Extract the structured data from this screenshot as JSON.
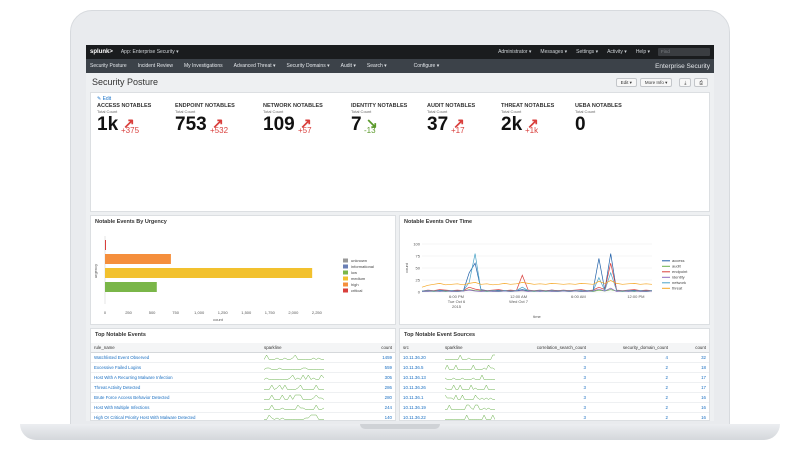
{
  "topbar": {
    "logo": "splunk>",
    "app": "App: Enterprise Security ▾",
    "menus": [
      "Administrator ▾",
      "Messages ▾",
      "Settings ▾",
      "Activity ▾",
      "Help ▾"
    ],
    "find_placeholder": "Find"
  },
  "navbar": {
    "items": [
      "Security Posture",
      "Incident Review",
      "My Investigations",
      "Advanced Threat ▾",
      "Security Domains ▾",
      "Audit ▾",
      "Search ▾",
      "Configure ▾"
    ],
    "brand": "Enterprise Security"
  },
  "page": {
    "title": "Security Posture",
    "edit_btn": "Edit ▾",
    "more_info_btn": "More Info ▾",
    "download_icon": "download-icon",
    "print_icon": "print-icon"
  },
  "kpi_panel": {
    "edit_link": "✎ Edit",
    "items": [
      {
        "label": "ACCESS NOTABLES",
        "sub": "Total Count",
        "value": "1k",
        "delta": "+375",
        "trend": "up"
      },
      {
        "label": "ENDPOINT NOTABLES",
        "sub": "Total Count",
        "value": "753",
        "delta": "+532",
        "trend": "up"
      },
      {
        "label": "NETWORK NOTABLES",
        "sub": "Total Count",
        "value": "109",
        "delta": "+57",
        "trend": "up"
      },
      {
        "label": "IDENTITY NOTABLES",
        "sub": "Total Count",
        "value": "7",
        "delta": "-13",
        "trend": "down"
      },
      {
        "label": "AUDIT NOTABLES",
        "sub": "Total Count",
        "value": "37",
        "delta": "+17",
        "trend": "up"
      },
      {
        "label": "THREAT NOTABLES",
        "sub": "Total Count",
        "value": "2k",
        "delta": "+1k",
        "trend": "up"
      },
      {
        "label": "UEBA NOTABLES",
        "sub": "Total Count",
        "value": "0",
        "delta": "",
        "trend": "none"
      }
    ],
    "up_color": "#d93f3c",
    "down_color": "#5b9a2b"
  },
  "urgency_chart": {
    "title": "Notable Events By Urgency",
    "ylabel": "urgency",
    "xlabel": "count",
    "ticks": [
      "0",
      "250",
      "500",
      "750",
      "1,000",
      "1,250",
      "1,500",
      "1,750",
      "2,000",
      "2,250"
    ],
    "legend": [
      {
        "name": "unknown",
        "color": "#999999"
      },
      {
        "name": "informational",
        "color": "#6a7fb5"
      },
      {
        "name": "low",
        "color": "#7ab648"
      },
      {
        "name": "medium",
        "color": "#f2c12e"
      },
      {
        "name": "high",
        "color": "#f58f3c"
      },
      {
        "name": "critical",
        "color": "#d93f3c"
      }
    ]
  },
  "chart_data": [
    {
      "type": "bar",
      "categories": [
        "critical",
        "high",
        "medium",
        "low"
      ],
      "values": [
        10,
        700,
        2200,
        550
      ],
      "xlim": [
        0,
        2400
      ]
    },
    {
      "type": "line",
      "x": [
        0,
        1,
        2,
        3,
        4,
        5,
        6,
        7,
        8,
        9,
        10,
        11,
        12,
        13,
        14,
        15,
        16,
        17,
        18,
        19,
        20,
        21,
        22,
        23,
        24,
        25,
        26,
        27,
        28,
        29,
        30,
        31,
        32,
        33,
        34,
        35,
        36,
        37,
        38,
        39
      ],
      "series": [
        {
          "name": "access",
          "color": "#1f5fa8",
          "values": [
            2,
            3,
            2,
            4,
            3,
            2,
            3,
            2,
            40,
            60,
            5,
            3,
            2,
            4,
            3,
            2,
            3,
            5,
            3,
            2,
            3,
            2,
            4,
            3,
            2,
            3,
            2,
            3,
            2,
            3,
            70,
            4,
            80,
            3,
            2,
            3,
            4,
            2,
            3,
            2
          ]
        },
        {
          "name": "audit",
          "color": "#6ab04c",
          "values": [
            1,
            2,
            1,
            2,
            1,
            2,
            1,
            2,
            5,
            3,
            2,
            1,
            2,
            1,
            2,
            1,
            2,
            3,
            2,
            1,
            2,
            1,
            2,
            1,
            2,
            1,
            2,
            1,
            2,
            1,
            4,
            2,
            5,
            2,
            1,
            2,
            1,
            2,
            1,
            2
          ]
        },
        {
          "name": "endpoint",
          "color": "#d93f3c",
          "values": [
            2,
            4,
            3,
            5,
            4,
            3,
            4,
            3,
            10,
            6,
            4,
            3,
            4,
            5,
            3,
            4,
            3,
            35,
            4,
            3,
            4,
            3,
            4,
            3,
            4,
            3,
            4,
            5,
            3,
            4,
            10,
            5,
            60,
            4,
            3,
            4,
            5,
            3,
            4,
            3
          ]
        },
        {
          "name": "identity",
          "color": "#8e6bbf",
          "values": [
            1,
            1,
            2,
            1,
            2,
            1,
            1,
            2,
            4,
            2,
            1,
            2,
            1,
            1,
            2,
            1,
            2,
            3,
            1,
            2,
            1,
            2,
            1,
            1,
            2,
            1,
            2,
            1,
            1,
            2,
            6,
            2,
            8,
            1,
            2,
            1,
            2,
            1,
            1,
            2
          ]
        },
        {
          "name": "network",
          "color": "#4ba3c7",
          "values": [
            2,
            3,
            2,
            3,
            2,
            3,
            2,
            3,
            20,
            80,
            3,
            2,
            3,
            2,
            3,
            2,
            3,
            10,
            3,
            2,
            3,
            2,
            3,
            2,
            3,
            2,
            3,
            2,
            3,
            2,
            30,
            3,
            40,
            3,
            2,
            3,
            2,
            3,
            2,
            3
          ]
        },
        {
          "name": "threat",
          "color": "#f5a623",
          "values": [
            10,
            14,
            16,
            18,
            15,
            16,
            17,
            15,
            18,
            20,
            16,
            17,
            15,
            16,
            18,
            16,
            17,
            20,
            18,
            16,
            17,
            16,
            18,
            17,
            16,
            17,
            16,
            18,
            17,
            16,
            22,
            18,
            24,
            18,
            16,
            17,
            18,
            16,
            17,
            16
          ]
        }
      ],
      "ylim": [
        0,
        100
      ],
      "yticks": [
        "0",
        "25",
        "50",
        "75",
        "100"
      ],
      "xticks": [
        "6:00 PM\nTue Oct 6\n2015",
        "12:00 AM\nWed Oct 7",
        "6:00 AM",
        "12:00 PM"
      ]
    }
  ],
  "time_chart": {
    "title": "Notable Events Over Time",
    "ylabel": "count",
    "xlabel": "time",
    "y_ticks": [
      "0",
      "25",
      "50",
      "75",
      "100"
    ],
    "x_ticks": [
      {
        "l1": "6:00 PM",
        "l2": "Tue Oct 6",
        "l3": "2015"
      },
      {
        "l1": "12:00 AM",
        "l2": "Wed Oct 7",
        "l3": ""
      },
      {
        "l1": "6:00 AM",
        "l2": "",
        "l3": ""
      },
      {
        "l1": "12:00 PM",
        "l2": "",
        "l3": ""
      }
    ]
  },
  "top_events": {
    "title": "Top Notable Events",
    "columns": [
      "rule_name",
      "sparkline",
      "count"
    ],
    "rows": [
      {
        "rule_name": "Watchlisted Event Observed",
        "count": "1459"
      },
      {
        "rule_name": "Excessive Failed Logins",
        "count": "559"
      },
      {
        "rule_name": "Host With A Recurring Malware Infection",
        "count": "305"
      },
      {
        "rule_name": "Threat Activity Detected",
        "count": "286"
      },
      {
        "rule_name": "Brute Force Access Behavior Detected",
        "count": "280"
      },
      {
        "rule_name": "Host With Multiple Infections",
        "count": "244"
      },
      {
        "rule_name": "High Or Critical Priority Host With Malware Detected",
        "count": "140"
      },
      {
        "rule_name": "Default Account Activity Detected",
        "count": "128"
      },
      {
        "rule_name": "Insecure Or Cleartext Authentication Detected",
        "count": "115"
      },
      {
        "rule_name": "Host Sending Excessive Email",
        "count": "88"
      }
    ]
  },
  "top_sources": {
    "title": "Top Notable Event Sources",
    "columns": [
      "src",
      "sparkline",
      "correlation_search_count",
      "security_domain_count",
      "count"
    ],
    "rows": [
      {
        "src": "10.11.36.20",
        "cs": "3",
        "sd": "4",
        "count": "32"
      },
      {
        "src": "10.11.36.5",
        "cs": "3",
        "sd": "2",
        "count": "18"
      },
      {
        "src": "10.11.36.13",
        "cs": "3",
        "sd": "2",
        "count": "17"
      },
      {
        "src": "10.11.36.26",
        "cs": "3",
        "sd": "2",
        "count": "17"
      },
      {
        "src": "10.11.36.1",
        "cs": "3",
        "sd": "2",
        "count": "16"
      },
      {
        "src": "10.11.36.19",
        "cs": "3",
        "sd": "2",
        "count": "16"
      },
      {
        "src": "10.11.36.22",
        "cs": "3",
        "sd": "2",
        "count": "16"
      },
      {
        "src": "10.11.36.18",
        "cs": "3",
        "sd": "2",
        "count": "15"
      },
      {
        "src": "10.11.36.11",
        "cs": "3",
        "sd": "2",
        "count": "15"
      },
      {
        "src": "10.11.36.21",
        "cs": "3",
        "sd": "2",
        "count": "15"
      }
    ]
  }
}
